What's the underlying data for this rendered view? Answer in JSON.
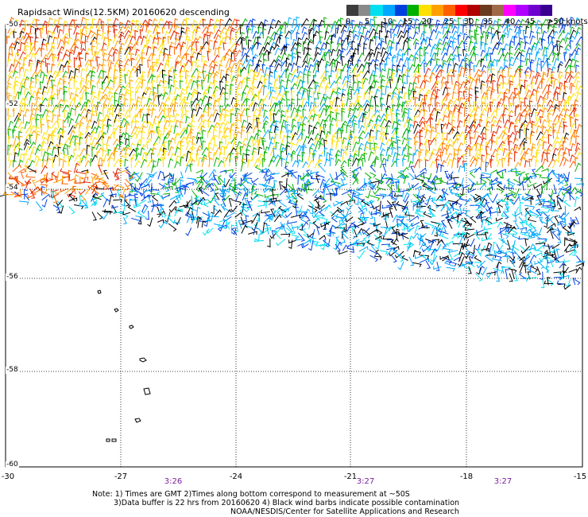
{
  "title": "Rapidsact Winds(12.5KM) 20160620 descending",
  "legend": {
    "labels": [
      "0",
      "5",
      "10",
      "15",
      "20",
      "25",
      "30",
      "35",
      "40",
      "45",
      ">50 knots"
    ],
    "colors": [
      "#3c3c3c",
      "#8a8a8a",
      "#00e0f0",
      "#00a8ff",
      "#0040e0",
      "#00b000",
      "#ffe000",
      "#ffa000",
      "#ff6000",
      "#ff0000",
      "#b00000",
      "#6b3a1e",
      "#a06a4a",
      "#ff00ff",
      "#b000ff",
      "#7000d0",
      "#3a0090"
    ]
  },
  "axes": {
    "lat_labels": [
      "-50",
      "-52",
      "-54",
      "-56",
      "-58",
      "-60"
    ],
    "lon_labels": [
      "-30",
      "-27",
      "-24",
      "-21",
      "-18",
      "-15"
    ],
    "lat_range": [
      -60,
      -50
    ],
    "lon_range": [
      -30,
      -15
    ]
  },
  "times": [
    "3:26",
    "3:27",
    "3:27"
  ],
  "notes": {
    "line1": "Note: 1) Times are GMT 2)Times along bottom correspond to measurement at ~50S",
    "line2": "3)Data buffer is 22 hrs from 20160620 4) Black wind barbs indicate possible contamination",
    "line3": "NOAA/NESDIS/Center for Satellite Applications and Research"
  }
}
